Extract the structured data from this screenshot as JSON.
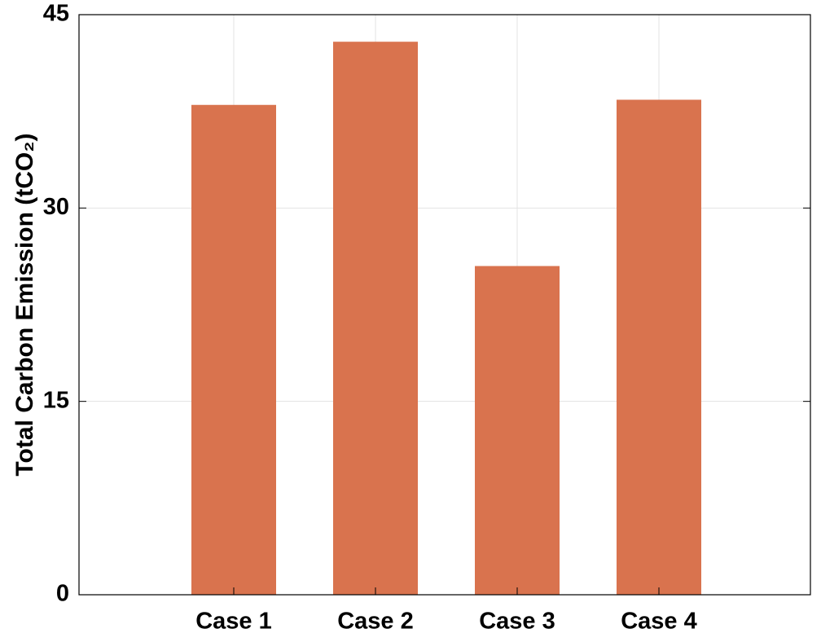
{
  "chart_data": {
    "type": "bar",
    "y_label": "Total Carbon Emission (tCO₂)",
    "categories": [
      "Case 1",
      "Case 2",
      "Case 3",
      "Case 4"
    ],
    "values": [
      38,
      42.9,
      25.5,
      38.4
    ],
    "color": "#d9734e",
    "ylim": [
      0,
      45
    ],
    "yticks": [
      0,
      15,
      30,
      45
    ],
    "grid": true
  }
}
